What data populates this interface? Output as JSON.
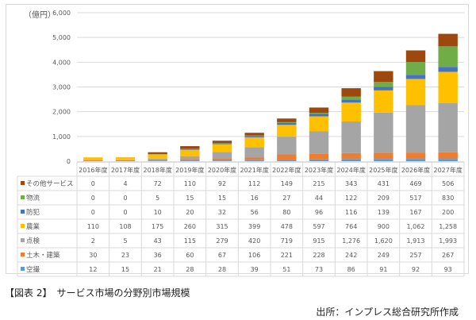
{
  "chart_data": {
    "type": "bar",
    "stacked": true,
    "ylabel": "（億円）",
    "ylim": [
      0,
      6000
    ],
    "yticks": [
      "0",
      "1,000",
      "2,000",
      "3,000",
      "4,000",
      "5,000",
      "6,000"
    ],
    "grid": true,
    "categories": [
      "2016年度",
      "2017年度",
      "2018年度",
      "2019年度",
      "2020年度",
      "2021年度",
      "2022年度",
      "2023年度",
      "2024年度",
      "2025年度",
      "2026年度",
      "2027年度"
    ],
    "series": [
      {
        "name": "その他サービス",
        "color": "#9e480e",
        "values": [
          0,
          4,
          72,
          110,
          92,
          112,
          149,
          215,
          343,
          431,
          469,
          506
        ],
        "labels": [
          "0",
          "4",
          "72",
          "110",
          "92",
          "112",
          "149",
          "215",
          "343",
          "431",
          "469",
          "506"
        ]
      },
      {
        "name": "物流",
        "color": "#70ad47",
        "values": [
          0,
          0,
          5,
          15,
          15,
          16,
          27,
          44,
          122,
          209,
          517,
          830
        ],
        "labels": [
          "0",
          "0",
          "5",
          "15",
          "15",
          "16",
          "27",
          "44",
          "122",
          "209",
          "517",
          "830"
        ]
      },
      {
        "name": "防犯",
        "color": "#4472c4",
        "values": [
          0,
          0,
          10,
          20,
          32,
          56,
          80,
          96,
          116,
          139,
          167,
          200
        ],
        "labels": [
          "0",
          "0",
          "10",
          "20",
          "32",
          "56",
          "80",
          "96",
          "116",
          "139",
          "167",
          "200"
        ]
      },
      {
        "name": "農業",
        "color": "#ffc000",
        "values": [
          110,
          108,
          175,
          260,
          315,
          399,
          478,
          597,
          764,
          900,
          1062,
          1258
        ],
        "labels": [
          "110",
          "108",
          "175",
          "260",
          "315",
          "399",
          "478",
          "597",
          "764",
          "900",
          "1,062",
          "1,258"
        ]
      },
      {
        "name": "点検",
        "color": "#a5a5a5",
        "values": [
          2,
          5,
          43,
          115,
          279,
          420,
          719,
          915,
          1276,
          1620,
          1913,
          1993
        ],
        "labels": [
          "2",
          "5",
          "43",
          "115",
          "279",
          "420",
          "719",
          "915",
          "1,276",
          "1,620",
          "1,913",
          "1,993"
        ]
      },
      {
        "name": "土木・建築",
        "color": "#ed7d31",
        "values": [
          30,
          23,
          36,
          60,
          67,
          106,
          221,
          228,
          242,
          249,
          257,
          267
        ],
        "labels": [
          "30",
          "23",
          "36",
          "60",
          "67",
          "106",
          "221",
          "228",
          "242",
          "249",
          "257",
          "267"
        ]
      },
      {
        "name": "空撮",
        "color": "#5b9bd5",
        "values": [
          12,
          15,
          21,
          28,
          28,
          39,
          51,
          73,
          86,
          91,
          92,
          93
        ],
        "labels": [
          "12",
          "15",
          "21",
          "28",
          "28",
          "39",
          "51",
          "73",
          "86",
          "91",
          "92",
          "93"
        ]
      }
    ]
  },
  "caption": "【図表 2】　サービス市場の分野別市場規模",
  "source": "出所：インプレス総合研究所作成"
}
